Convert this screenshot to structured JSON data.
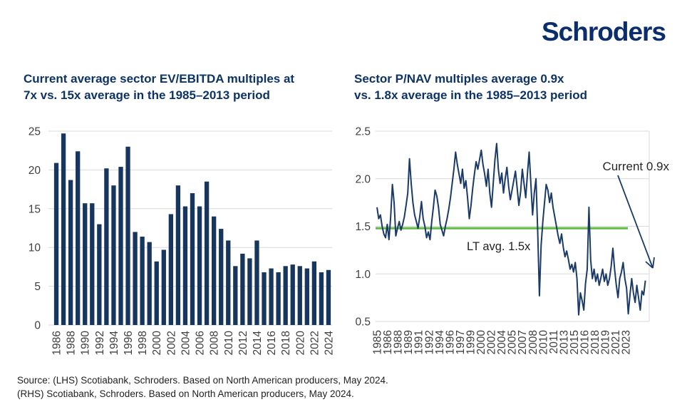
{
  "logo": {
    "text": "Schroders",
    "color": "#0B2D6E"
  },
  "charts": {
    "lhs": {
      "title_line1": "Current average sector EV/EBITDA multiples at",
      "title_line2": "7x vs. 15x average in the 1985–2013 period"
    },
    "rhs": {
      "title_line1": "Sector P/NAV multiples average 0.9x",
      "title_line2": "vs. 1.8x average in the 1985–2013 period"
    }
  },
  "source": {
    "line1": "Source: (LHS) Scotiabank, Schroders. Based on North American producers, May 2024.",
    "line2": "(RHS) Scotiabank, Schroders. Based on North American producers, May 2024."
  },
  "chart_data": [
    {
      "type": "bar",
      "title": "Current average sector EV/EBITDA multiples at 7x vs. 15x average in the 1985-2013 period",
      "categories": [
        1986,
        1987,
        1988,
        1989,
        1990,
        1991,
        1992,
        1993,
        1994,
        1995,
        1996,
        1997,
        1998,
        1999,
        2000,
        2001,
        2002,
        2003,
        2004,
        2005,
        2006,
        2007,
        2008,
        2009,
        2010,
        2011,
        2012,
        2013,
        2014,
        2015,
        2016,
        2017,
        2018,
        2019,
        2020,
        2021,
        2022,
        2023,
        2024
      ],
      "values": [
        20.9,
        24.7,
        18.7,
        22.4,
        15.7,
        15.7,
        13.0,
        20.2,
        18.0,
        20.4,
        23.0,
        12.0,
        11.4,
        10.7,
        8.2,
        9.7,
        14.3,
        18.0,
        15.3,
        17.0,
        15.3,
        18.5,
        14.0,
        12.4,
        10.9,
        7.6,
        9.2,
        8.6,
        10.9,
        6.8,
        7.3,
        6.8,
        7.6,
        7.8,
        7.6,
        7.3,
        8.2,
        6.8,
        7.1
      ],
      "ylim": [
        0,
        25
      ],
      "yticks": [
        0,
        5,
        10,
        15,
        20,
        25
      ],
      "xtick_labels": [
        "1986",
        "1988",
        "1990",
        "1992",
        "1994",
        "1996",
        "1998",
        "2000",
        "2002",
        "2004",
        "2006",
        "2008",
        "2010",
        "2012",
        "2014",
        "2016",
        "2018",
        "2020",
        "2022",
        "2024"
      ],
      "xlabel": "",
      "ylabel": "",
      "grid": true,
      "legend": "none",
      "bar_color": "#17365D",
      "grid_color": "#D9D9D9"
    },
    {
      "type": "line",
      "title": "Sector P/NAV multiples average 0.9x vs. 1.8x average in the 1985-2013 period",
      "x": [
        1985,
        1985.25,
        1985.5,
        1985.75,
        1986,
        1986.25,
        1986.5,
        1986.75,
        1987,
        1987.25,
        1987.5,
        1987.75,
        1988,
        1988.25,
        1988.5,
        1988.75,
        1989,
        1989.25,
        1989.5,
        1989.75,
        1990,
        1990.25,
        1990.5,
        1990.75,
        1991,
        1991.25,
        1991.5,
        1991.75,
        1992,
        1992.25,
        1992.5,
        1992.75,
        1993,
        1993.25,
        1993.5,
        1993.75,
        1994,
        1994.25,
        1994.5,
        1994.75,
        1995,
        1995.25,
        1995.5,
        1995.75,
        1996,
        1996.25,
        1996.5,
        1996.75,
        1997,
        1997.25,
        1997.5,
        1997.75,
        1998,
        1998.25,
        1998.5,
        1998.75,
        1999,
        1999.25,
        1999.5,
        1999.75,
        2000,
        2000.25,
        2000.5,
        2000.75,
        2001,
        2001.25,
        2001.5,
        2001.75,
        2002,
        2002.25,
        2002.5,
        2002.75,
        2003,
        2003.25,
        2003.5,
        2003.75,
        2004,
        2004.25,
        2004.5,
        2004.75,
        2005,
        2005.25,
        2005.5,
        2005.75,
        2006,
        2006.25,
        2006.5,
        2006.75,
        2007,
        2007.25,
        2007.5,
        2007.75,
        2008,
        2008.25,
        2008.5,
        2008.75,
        2009,
        2009.25,
        2009.5,
        2009.75,
        2010,
        2010.25,
        2010.5,
        2010.75,
        2011,
        2011.25,
        2011.5,
        2011.75,
        2012,
        2012.25,
        2012.5,
        2012.75,
        2013,
        2013.25,
        2013.5,
        2013.75,
        2014,
        2014.25,
        2014.5,
        2014.75,
        2015,
        2015.25,
        2015.5,
        2015.75,
        2016,
        2016.25,
        2016.5,
        2016.75,
        2017,
        2017.25,
        2017.5,
        2017.75,
        2018,
        2018.25,
        2018.5,
        2018.75,
        2019,
        2019.25,
        2019.5,
        2019.75,
        2020,
        2020.25,
        2020.5,
        2020.75,
        2021,
        2021.25,
        2021.5,
        2021.75,
        2022,
        2022.25,
        2022.5,
        2022.75,
        2023,
        2023.25,
        2023.5,
        2023.75,
        2024,
        2024.25
      ],
      "y": [
        1.7,
        1.58,
        1.62,
        1.5,
        1.42,
        1.38,
        1.52,
        1.36,
        1.6,
        1.94,
        1.75,
        1.4,
        1.48,
        1.55,
        1.46,
        1.52,
        1.6,
        1.72,
        1.85,
        2.21,
        1.95,
        1.75,
        1.62,
        1.55,
        1.48,
        1.6,
        1.76,
        1.58,
        1.5,
        1.38,
        1.44,
        1.36,
        1.55,
        1.7,
        1.88,
        1.82,
        1.7,
        1.52,
        1.46,
        1.4,
        1.5,
        1.58,
        1.68,
        1.8,
        1.95,
        2.1,
        2.28,
        2.15,
        2.05,
        1.95,
        2.1,
        1.9,
        1.98,
        1.8,
        1.58,
        1.72,
        1.9,
        2.05,
        2.18,
        2.1,
        2.2,
        2.3,
        2.15,
        2.05,
        1.92,
        2.1,
        1.85,
        1.7,
        1.95,
        2.2,
        2.37,
        2.1,
        1.95,
        2.06,
        1.85,
        2.0,
        2.12,
        1.92,
        1.78,
        1.88,
        1.98,
        2.08,
        1.9,
        1.72,
        1.86,
        2.1,
        1.95,
        1.8,
        2.05,
        2.28,
        1.95,
        1.62,
        1.85,
        2.0,
        1.45,
        0.77,
        1.3,
        1.55,
        1.75,
        1.94,
        1.88,
        1.75,
        1.85,
        1.7,
        1.6,
        1.5,
        1.4,
        1.32,
        1.42,
        1.28,
        1.18,
        1.24,
        1.15,
        1.05,
        1.1,
        1.02,
        1.12,
        0.95,
        0.57,
        0.8,
        0.72,
        0.62,
        0.9,
        1.05,
        1.7,
        1.15,
        0.95,
        1.05,
        0.92,
        1.0,
        0.88,
        0.96,
        1.05,
        0.92,
        1.0,
        0.88,
        0.95,
        1.08,
        1.27,
        1.05,
        0.88,
        0.75,
        0.95,
        1.02,
        1.12,
        0.95,
        0.85,
        0.58,
        0.78,
        0.95,
        0.8,
        0.7,
        0.88,
        0.75,
        0.62,
        0.82,
        0.78,
        0.93
      ],
      "ylim": [
        0.5,
        2.5
      ],
      "yticks": [
        "2.5",
        "2.0",
        "1.5",
        "1.0",
        "0.5"
      ],
      "xtick_labels": [
        "1985",
        "1986",
        "1988",
        "1989",
        "1991",
        "1992",
        "1994",
        "1996",
        "1997",
        "1999",
        "2000",
        "2002",
        "2004",
        "2005",
        "2007",
        "2008",
        "2010",
        "2011",
        "2013",
        "2015",
        "2016",
        "2018",
        "2019",
        "2021",
        "2023"
      ],
      "xlabel": "",
      "ylabel": "",
      "grid": true,
      "legend": "none",
      "line_color": "#1A3A68",
      "grid_color": "#D9D9D9",
      "reference_line": {
        "value": 1.48,
        "label": "LT avg. 1.5x",
        "color": "#62BB46"
      },
      "annotation": {
        "label": "Current 0.9x",
        "value": 0.93
      }
    }
  ]
}
